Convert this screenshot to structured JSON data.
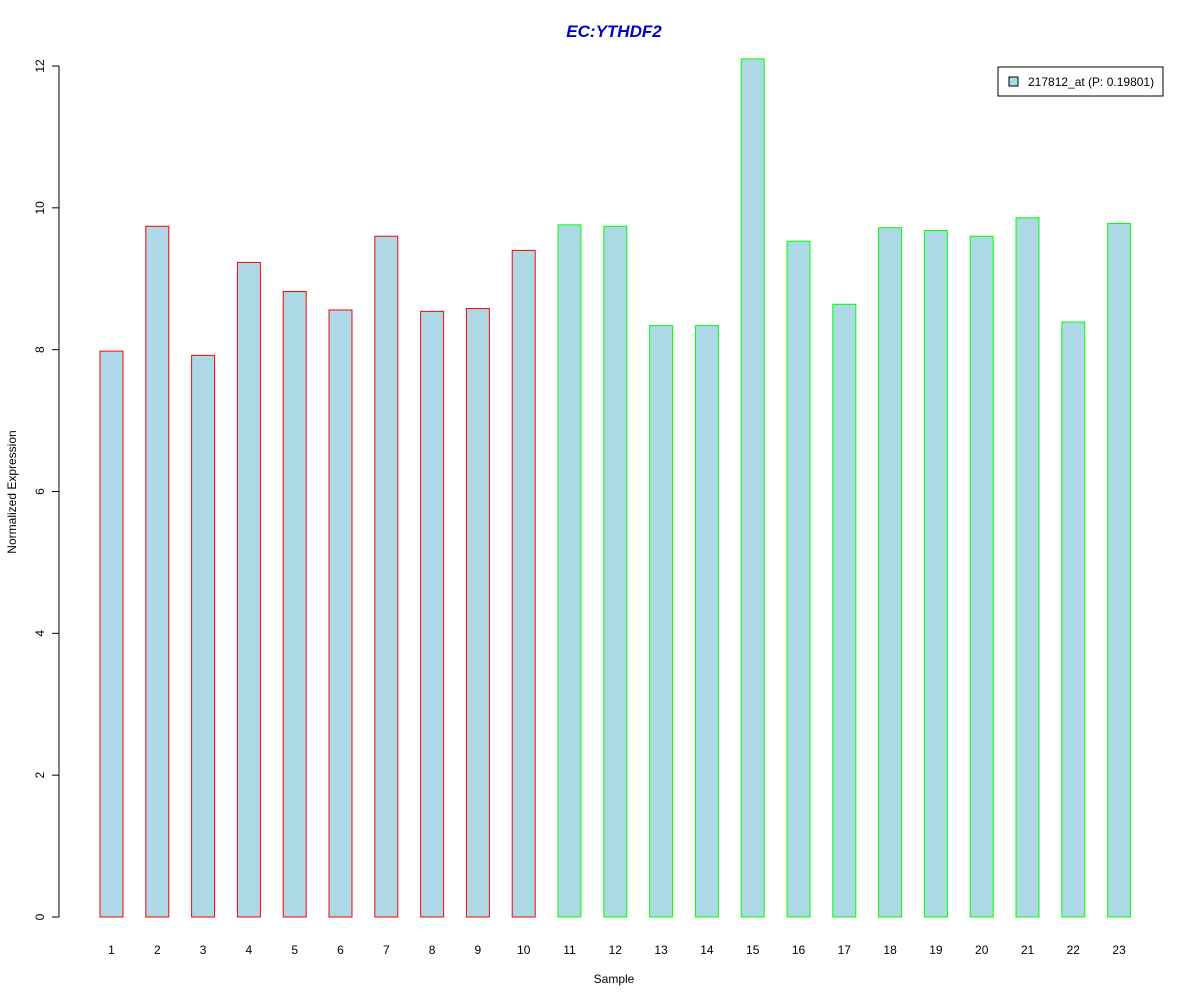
{
  "chart_data": {
    "type": "bar",
    "title": "EC:YTHDF2",
    "xlabel": "Sample",
    "ylabel": "Normalized Expression",
    "categories": [
      "1",
      "2",
      "3",
      "4",
      "5",
      "6",
      "7",
      "8",
      "9",
      "10",
      "11",
      "12",
      "13",
      "14",
      "15",
      "16",
      "17",
      "18",
      "19",
      "20",
      "21",
      "22",
      "23"
    ],
    "values": [
      7.98,
      9.74,
      7.92,
      9.23,
      8.82,
      8.56,
      9.6,
      8.54,
      8.58,
      9.4,
      9.76,
      9.74,
      8.34,
      8.34,
      12.1,
      9.53,
      8.64,
      9.72,
      9.68,
      9.6,
      9.86,
      8.39,
      9.78
    ],
    "ylim": [
      0,
      12
    ],
    "yticks": [
      0,
      2,
      4,
      6,
      8,
      10,
      12
    ],
    "grid": false,
    "legend_position": "top-right",
    "legend": [
      {
        "label": "217812_at (P: 0.19801)"
      }
    ],
    "fill_color": "#add8e6",
    "border_colors": [
      "#ff0000",
      "#ff0000",
      "#ff0000",
      "#ff0000",
      "#ff0000",
      "#ff0000",
      "#ff0000",
      "#ff0000",
      "#ff0000",
      "#ff0000",
      "#00ff00",
      "#00ff00",
      "#00ff00",
      "#00ff00",
      "#00ff00",
      "#00ff00",
      "#00ff00",
      "#00ff00",
      "#00ff00",
      "#00ff00",
      "#00ff00",
      "#00ff00",
      "#00ff00"
    ],
    "title_color": "#0000cc"
  }
}
